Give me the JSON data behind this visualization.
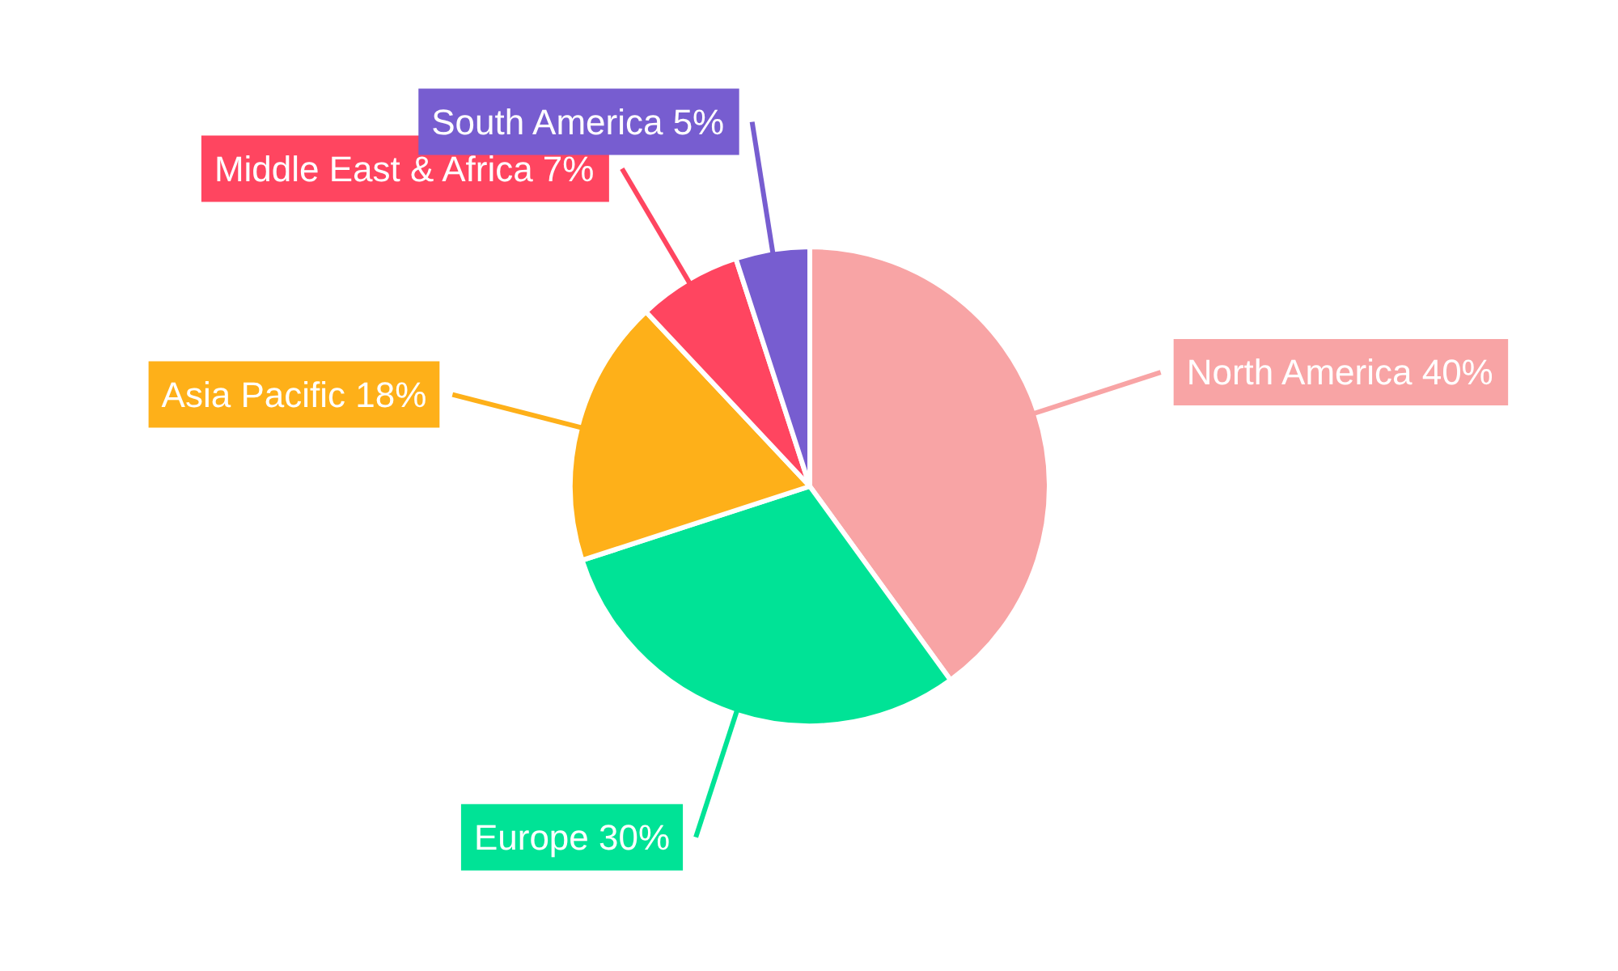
{
  "chart_data": {
    "type": "pie",
    "categories": [
      "North America",
      "Europe",
      "Asia Pacific",
      "Middle East & Africa",
      "South America"
    ],
    "values": [
      40,
      30,
      18,
      7,
      5
    ],
    "colors": [
      "#f8a4a5",
      "#00e396",
      "#feb019",
      "#ff4560",
      "#775dd0"
    ],
    "value_labels": [
      "40%",
      "30%",
      "18%",
      "7%",
      "5%"
    ]
  }
}
